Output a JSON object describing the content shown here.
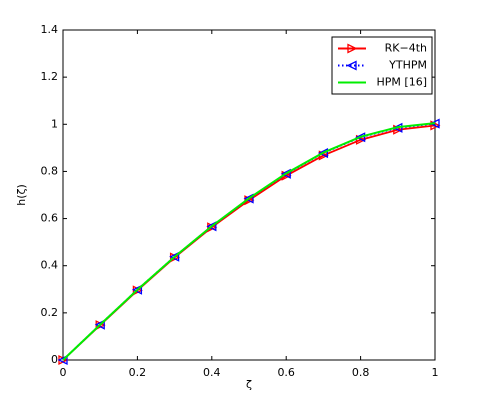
{
  "chart_data": {
    "type": "line",
    "x_label": "ζ",
    "y_label": "h(ζ)",
    "x": [
      0,
      0.1,
      0.2,
      0.3,
      0.4,
      0.5,
      0.6,
      0.7,
      0.8,
      0.9,
      1
    ],
    "series": [
      {
        "name": "RK−4th",
        "color": "#ff0000",
        "marker": "triangle-right",
        "linestyle": "solid",
        "values": [
          0,
          0.148,
          0.295,
          0.435,
          0.563,
          0.678,
          0.782,
          0.868,
          0.934,
          0.977,
          0.995
        ]
      },
      {
        "name": "YTHPM",
        "color": "#0000ff",
        "marker": "triangle-left",
        "linestyle": "dotted",
        "values": [
          0,
          0.15,
          0.298,
          0.438,
          0.567,
          0.685,
          0.79,
          0.878,
          0.945,
          0.985,
          1.003
        ]
      },
      {
        "name": "HPM [16]",
        "color": "#00ee00",
        "marker": "none",
        "linestyle": "solid",
        "values": [
          0,
          0.15,
          0.298,
          0.438,
          0.568,
          0.686,
          0.792,
          0.88,
          0.947,
          0.988,
          1.005
        ]
      }
    ],
    "xlim": [
      0,
      1
    ],
    "xticks": [
      0,
      0.2,
      0.4,
      0.6,
      0.8,
      1
    ],
    "ylim": [
      0,
      1.4
    ],
    "yticks": [
      0,
      0.2,
      0.4,
      0.6,
      0.8,
      1,
      1.2,
      1.4
    ],
    "grid": false,
    "legend": "top-right"
  }
}
